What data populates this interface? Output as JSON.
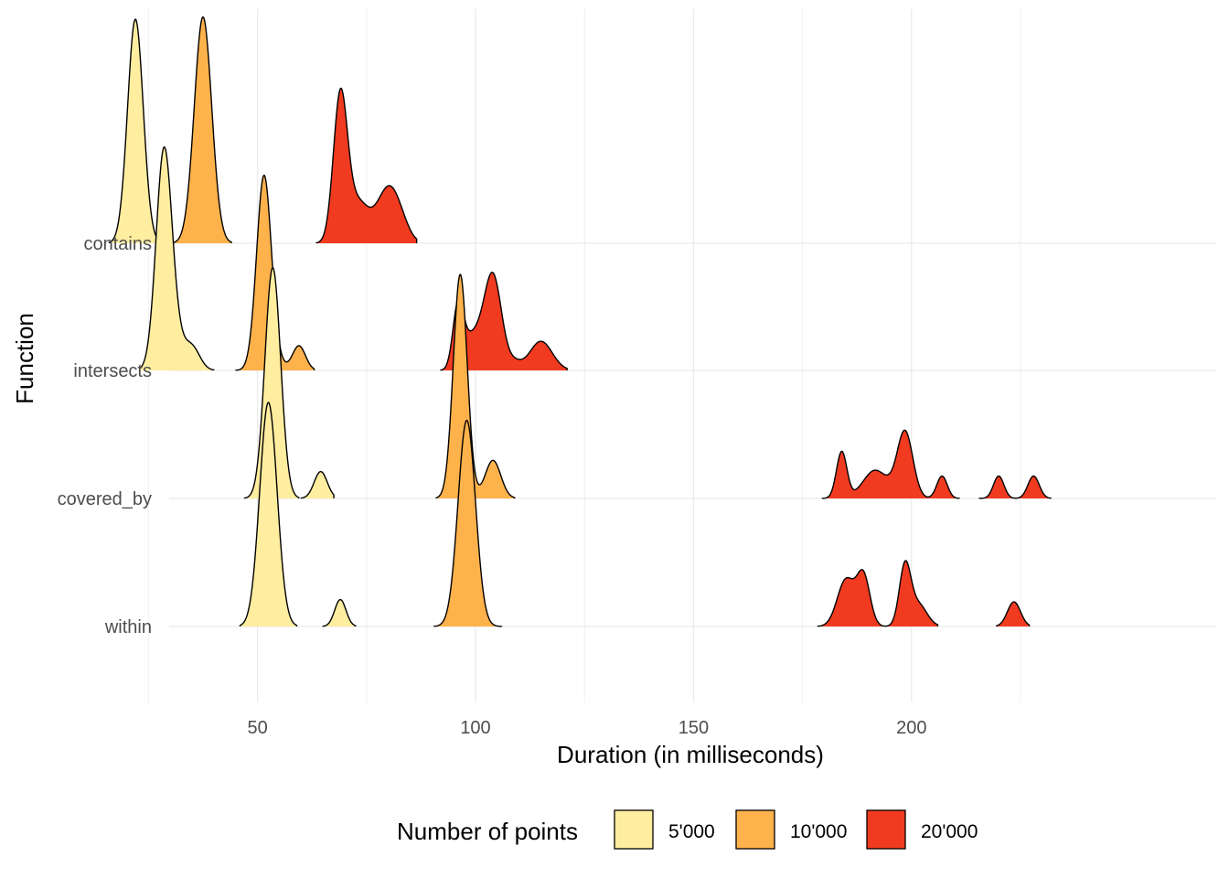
{
  "chart_data": {
    "type": "area",
    "subtype": "ridgeline-density",
    "xlabel": "Duration (in milliseconds)",
    "ylabel": "Function",
    "x_ticks": [
      50,
      100,
      150,
      200
    ],
    "xlim": [
      8,
      243
    ],
    "categories": [
      "contains",
      "intersects",
      "covered_by",
      "within"
    ],
    "legend": {
      "title": "Number of points",
      "position": "bottom",
      "entries": [
        {
          "label": "5'000",
          "color": "#FFEDA0"
        },
        {
          "label": "10'000",
          "color": "#FEB24C"
        },
        {
          "label": "20'000",
          "color": "#F03B20"
        }
      ]
    },
    "grid": true,
    "ridges": [
      {
        "category": "contains",
        "series": "5'000",
        "range": [
          16,
          30
        ],
        "peaks": [
          [
            22,
            1.0,
            1.8
          ]
        ]
      },
      {
        "category": "contains",
        "series": "10'000",
        "range": [
          30,
          44
        ],
        "peaks": [
          [
            37.5,
            1.01,
            2.0
          ]
        ]
      },
      {
        "category": "contains",
        "series": "20'000",
        "range": [
          63.5,
          86.5
        ],
        "peaks": [
          [
            69,
            0.64,
            1.6
          ],
          [
            73,
            0.18,
            2.5
          ],
          [
            80,
            0.24,
            2.6
          ],
          [
            83,
            0.04,
            2.0
          ]
        ]
      },
      {
        "category": "intersects",
        "series": "5'000",
        "range": [
          23,
          40
        ],
        "peaks": [
          [
            28.5,
            0.94,
            1.8
          ],
          [
            31,
            0.12,
            2.0
          ],
          [
            35,
            0.1,
            1.8
          ]
        ]
      },
      {
        "category": "intersects",
        "series": "10'000",
        "range": [
          45,
          63
        ],
        "peaks": [
          [
            51.5,
            0.87,
            1.7
          ],
          [
            59.5,
            0.11,
            1.5
          ],
          [
            55,
            0.02,
            1.5
          ]
        ]
      },
      {
        "category": "intersects",
        "series": "20'000",
        "range": [
          92,
          121
        ],
        "peaks": [
          [
            96,
            0.28,
            1.2
          ],
          [
            98,
            0.05,
            1.5
          ],
          [
            104,
            0.42,
            2.0
          ],
          [
            100,
            0.12,
            2.0
          ],
          [
            115,
            0.13,
            2.6
          ],
          [
            109,
            0.03,
            1.5
          ]
        ]
      },
      {
        "category": "covered_by",
        "series": "5'000",
        "range": [
          47,
          59.5
        ],
        "peaks": [
          [
            53.5,
            1.03,
            1.8
          ]
        ]
      },
      {
        "category": "covered_by",
        "series": "5'000",
        "range": [
          60,
          67.5
        ],
        "peaks": [
          [
            64.5,
            0.12,
            1.5
          ]
        ]
      },
      {
        "category": "covered_by",
        "series": "10'000",
        "range": [
          91,
          109
        ],
        "peaks": [
          [
            96.5,
            1.0,
            1.6
          ],
          [
            104,
            0.17,
            1.8
          ]
        ]
      },
      {
        "category": "covered_by",
        "series": "20'000",
        "range": [
          179.5,
          211
        ],
        "peaks": [
          [
            184,
            0.21,
            1.2
          ],
          [
            191,
            0.1,
            2.0
          ],
          [
            198.5,
            0.3,
            1.8
          ],
          [
            207,
            0.1,
            1.2
          ],
          [
            194,
            0.06,
            2.0
          ],
          [
            188,
            0.02,
            1.5
          ]
        ]
      },
      {
        "category": "covered_by",
        "series": "20'000",
        "range": [
          215.5,
          232
        ],
        "peaks": [
          [
            220,
            0.1,
            1.2
          ],
          [
            228,
            0.1,
            1.3
          ]
        ]
      },
      {
        "category": "within",
        "series": "5'000",
        "range": [
          46,
          59
        ],
        "peaks": [
          [
            52.5,
            1.0,
            2.0
          ]
        ]
      },
      {
        "category": "within",
        "series": "5'000",
        "range": [
          65,
          72.5
        ],
        "peaks": [
          [
            69,
            0.12,
            1.3
          ]
        ]
      },
      {
        "category": "within",
        "series": "10'000",
        "range": [
          90.5,
          106
        ],
        "peaks": [
          [
            98,
            0.92,
            2.0
          ]
        ]
      },
      {
        "category": "within",
        "series": "20'000",
        "range": [
          178.5,
          206
        ],
        "peaks": [
          [
            185,
            0.21,
            2.0
          ],
          [
            189,
            0.22,
            1.5
          ],
          [
            198.5,
            0.26,
            1.3
          ],
          [
            201.5,
            0.1,
            2.0
          ]
        ]
      },
      {
        "category": "within",
        "series": "20'000",
        "range": [
          219.5,
          227
        ],
        "peaks": [
          [
            223.5,
            0.11,
            1.5
          ]
        ]
      }
    ]
  }
}
